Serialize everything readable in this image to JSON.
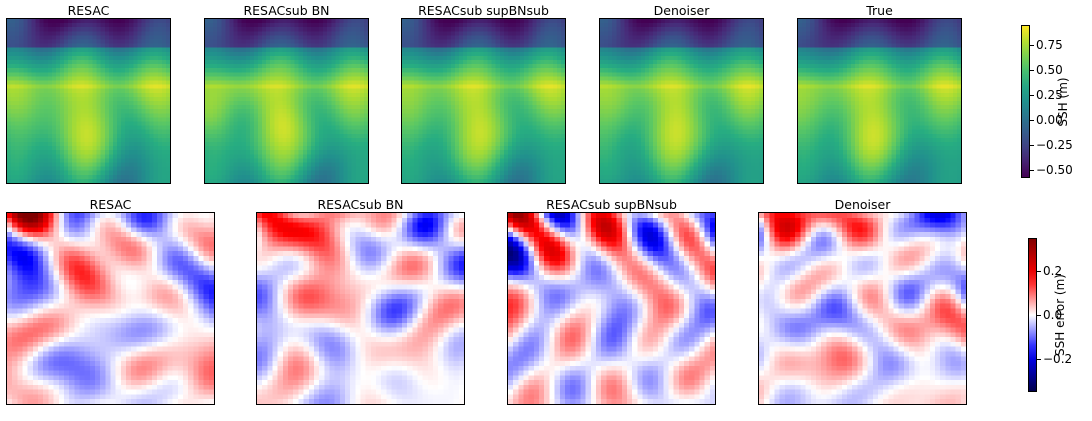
{
  "chart_data": [
    {
      "type": "heatmap",
      "row": "ssh",
      "panels": [
        {
          "title": "RESAC",
          "seed": 11
        },
        {
          "title": "RESACsub BN",
          "seed": 12
        },
        {
          "title": "RESACsub supBNsub",
          "seed": 13
        },
        {
          "title": "Denoiser",
          "seed": 14
        },
        {
          "title": "True",
          "seed": 15
        }
      ],
      "colormap": "viridis",
      "colorbar": {
        "label": "SSH (m)",
        "vmin": -0.58,
        "vmax": 0.95,
        "ticks": [
          {
            "value": 0.75,
            "label": "0.75"
          },
          {
            "value": 0.5,
            "label": "0.50"
          },
          {
            "value": 0.25,
            "label": "0.25"
          },
          {
            "value": 0.0,
            "label": "0.00"
          },
          {
            "value": -0.25,
            "label": "−0.25"
          },
          {
            "value": -0.5,
            "label": "−0.50"
          }
        ]
      }
    },
    {
      "type": "heatmap",
      "row": "error",
      "panels": [
        {
          "title": "RESAC",
          "seed": 21
        },
        {
          "title": "RESACsub BN",
          "seed": 22
        },
        {
          "title": "RESACsub supBNsub",
          "seed": 23
        },
        {
          "title": "Denoiser",
          "seed": 24
        }
      ],
      "colormap": "seismic",
      "colorbar": {
        "label": "SSH error (m)",
        "vmin": -0.35,
        "vmax": 0.35,
        "ticks": [
          {
            "value": 0.2,
            "label": "0.2"
          },
          {
            "value": 0.0,
            "label": "0.0"
          },
          {
            "value": -0.2,
            "label": "−0.2"
          }
        ]
      }
    }
  ]
}
